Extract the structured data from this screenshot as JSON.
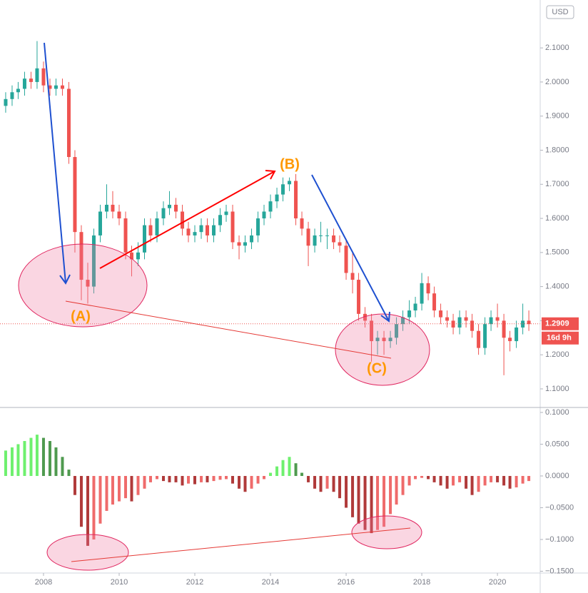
{
  "chart_data": [
    {
      "type": "candlestick",
      "x": [
        2007,
        2007.17,
        2007.33,
        2007.5,
        2007.67,
        2007.83,
        2008,
        2008.17,
        2008.33,
        2008.5,
        2008.67,
        2008.83,
        2009,
        2009.17,
        2009.33,
        2009.5,
        2009.67,
        2009.83,
        2010,
        2010.17,
        2010.33,
        2010.5,
        2010.67,
        2010.83,
        2011,
        2011.17,
        2011.33,
        2011.5,
        2011.67,
        2011.83,
        2012,
        2012.17,
        2012.33,
        2012.5,
        2012.67,
        2012.83,
        2013,
        2013.17,
        2013.33,
        2013.5,
        2013.67,
        2013.83,
        2014,
        2014.17,
        2014.33,
        2014.5,
        2014.67,
        2014.83,
        2015,
        2015.17,
        2015.33,
        2015.5,
        2015.67,
        2015.83,
        2016,
        2016.17,
        2016.33,
        2016.5,
        2016.67,
        2016.83,
        2017,
        2017.17,
        2017.33,
        2017.5,
        2017.67,
        2017.83,
        2018,
        2018.17,
        2018.33,
        2018.5,
        2018.67,
        2018.83,
        2019,
        2019.17,
        2019.33,
        2019.5,
        2019.67,
        2019.83,
        2020,
        2020.17,
        2020.33,
        2020.5,
        2020.67,
        2020.83
      ],
      "open": [
        1.93,
        1.95,
        1.97,
        1.98,
        2.01,
        2.0,
        2.04,
        1.99,
        1.98,
        1.99,
        1.98,
        1.78,
        1.56,
        1.42,
        1.4,
        1.55,
        1.62,
        1.64,
        1.62,
        1.6,
        1.5,
        1.48,
        1.5,
        1.58,
        1.55,
        1.6,
        1.63,
        1.64,
        1.62,
        1.57,
        1.55,
        1.56,
        1.58,
        1.55,
        1.58,
        1.61,
        1.62,
        1.53,
        1.52,
        1.53,
        1.55,
        1.6,
        1.62,
        1.65,
        1.67,
        1.7,
        1.71,
        1.6,
        1.57,
        1.52,
        1.55,
        1.55,
        1.55,
        1.53,
        1.52,
        1.44,
        1.42,
        1.32,
        1.3,
        1.24,
        1.25,
        1.24,
        1.25,
        1.29,
        1.31,
        1.33,
        1.35,
        1.41,
        1.38,
        1.33,
        1.31,
        1.3,
        1.28,
        1.31,
        1.3,
        1.27,
        1.22,
        1.29,
        1.31,
        1.3,
        1.25,
        1.24,
        1.28,
        1.3
      ],
      "high": [
        1.97,
        1.99,
        2.0,
        2.03,
        2.03,
        2.12,
        2.06,
        2.01,
        2.01,
        2.01,
        2.0,
        1.8,
        1.58,
        1.47,
        1.57,
        1.64,
        1.7,
        1.68,
        1.64,
        1.62,
        1.52,
        1.53,
        1.6,
        1.6,
        1.62,
        1.65,
        1.68,
        1.66,
        1.64,
        1.59,
        1.58,
        1.6,
        1.6,
        1.6,
        1.63,
        1.64,
        1.64,
        1.55,
        1.55,
        1.57,
        1.62,
        1.64,
        1.67,
        1.69,
        1.72,
        1.72,
        1.73,
        1.62,
        1.59,
        1.57,
        1.59,
        1.57,
        1.57,
        1.55,
        1.54,
        1.5,
        1.44,
        1.34,
        1.32,
        1.27,
        1.27,
        1.27,
        1.31,
        1.33,
        1.36,
        1.37,
        1.44,
        1.43,
        1.4,
        1.35,
        1.33,
        1.32,
        1.33,
        1.33,
        1.32,
        1.29,
        1.31,
        1.33,
        1.35,
        1.32,
        1.27,
        1.3,
        1.35,
        1.33
      ],
      "low": [
        1.91,
        1.93,
        1.95,
        1.96,
        1.98,
        1.98,
        1.97,
        1.96,
        1.96,
        1.96,
        1.76,
        1.5,
        1.36,
        1.35,
        1.38,
        1.53,
        1.6,
        1.6,
        1.58,
        1.48,
        1.43,
        1.46,
        1.48,
        1.53,
        1.53,
        1.58,
        1.61,
        1.6,
        1.55,
        1.53,
        1.53,
        1.54,
        1.53,
        1.53,
        1.56,
        1.59,
        1.51,
        1.48,
        1.5,
        1.51,
        1.53,
        1.58,
        1.6,
        1.63,
        1.65,
        1.68,
        1.58,
        1.55,
        1.46,
        1.5,
        1.53,
        1.51,
        1.51,
        1.5,
        1.42,
        1.38,
        1.3,
        1.28,
        1.18,
        1.2,
        1.2,
        1.22,
        1.23,
        1.27,
        1.29,
        1.31,
        1.33,
        1.36,
        1.31,
        1.29,
        1.28,
        1.26,
        1.26,
        1.28,
        1.25,
        1.2,
        1.2,
        1.27,
        1.28,
        1.14,
        1.21,
        1.22,
        1.26,
        1.27
      ],
      "close": [
        1.95,
        1.97,
        1.98,
        2.01,
        2.0,
        2.04,
        1.99,
        1.98,
        1.99,
        1.98,
        1.78,
        1.56,
        1.42,
        1.4,
        1.55,
        1.62,
        1.64,
        1.62,
        1.6,
        1.5,
        1.48,
        1.5,
        1.58,
        1.55,
        1.6,
        1.63,
        1.64,
        1.62,
        1.57,
        1.55,
        1.56,
        1.58,
        1.55,
        1.58,
        1.61,
        1.62,
        1.53,
        1.52,
        1.53,
        1.55,
        1.6,
        1.62,
        1.65,
        1.67,
        1.7,
        1.71,
        1.6,
        1.57,
        1.52,
        1.55,
        1.55,
        1.55,
        1.53,
        1.52,
        1.44,
        1.42,
        1.32,
        1.3,
        1.24,
        1.25,
        1.24,
        1.25,
        1.29,
        1.31,
        1.33,
        1.35,
        1.41,
        1.38,
        1.33,
        1.31,
        1.3,
        1.28,
        1.31,
        1.3,
        1.27,
        1.22,
        1.29,
        1.31,
        1.3,
        1.25,
        1.24,
        1.28,
        1.3,
        1.29
      ],
      "colors": {
        "up": "#26a69a",
        "down": "#ef5350"
      },
      "xlim": [
        2006.85,
        2021.13
      ],
      "xticks": [
        2008,
        2010,
        2012,
        2014,
        2016,
        2018,
        2020
      ],
      "ylim": [
        1.0455,
        2.2405
      ],
      "yticks": [
        {
          "value": 1.1,
          "label": "1.1000"
        },
        {
          "value": 1.2,
          "label": "1.2000"
        },
        {
          "value": 1.3,
          "label": "1.3000"
        },
        {
          "value": 1.4,
          "label": "1.4000"
        },
        {
          "value": 1.5,
          "label": "1.5000"
        },
        {
          "value": 1.6,
          "label": "1.6000"
        },
        {
          "value": 1.7,
          "label": "1.7000"
        },
        {
          "value": 1.8,
          "label": "1.8000"
        },
        {
          "value": 1.9,
          "label": "1.9000"
        },
        {
          "value": 2.0,
          "label": "2.0000"
        },
        {
          "value": 2.1,
          "label": "2.1000"
        }
      ],
      "currency": "USD",
      "last_price": {
        "value": 1.2909,
        "label": "1.2909"
      },
      "countdown": "16d 9h",
      "annotations": [
        "(A)",
        "(B)",
        "(C)"
      ]
    },
    {
      "type": "bar",
      "values": [
        0.04,
        0.045,
        0.05,
        0.055,
        0.06,
        0.065,
        0.06,
        0.055,
        0.045,
        0.03,
        0.01,
        -0.03,
        -0.08,
        -0.11,
        -0.1,
        -0.075,
        -0.055,
        -0.045,
        -0.04,
        -0.035,
        -0.04,
        -0.03,
        -0.02,
        -0.01,
        -0.005,
        -0.008,
        -0.01,
        -0.01,
        -0.015,
        -0.012,
        -0.013,
        -0.01,
        -0.01,
        -0.008,
        -0.006,
        -0.005,
        -0.012,
        -0.02,
        -0.025,
        -0.02,
        -0.012,
        -0.005,
        0.005,
        0.015,
        0.025,
        0.03,
        0.02,
        0.005,
        -0.01,
        -0.02,
        -0.025,
        -0.02,
        -0.025,
        -0.035,
        -0.05,
        -0.065,
        -0.075,
        -0.085,
        -0.09,
        -0.085,
        -0.08,
        -0.06,
        -0.045,
        -0.03,
        -0.015,
        -0.005,
        -0.003,
        -0.005,
        -0.01,
        -0.015,
        -0.02,
        -0.015,
        -0.01,
        -0.02,
        -0.03,
        -0.025,
        -0.015,
        -0.01,
        -0.01,
        -0.015,
        -0.02,
        -0.018,
        -0.012,
        -0.008
      ],
      "colors": {
        "positive_growing": "#6ef06e",
        "positive_falling": "#4f9a4f",
        "negative_growing": "#b03a3a",
        "negative_falling": "#ef6b6b"
      },
      "ylim": [
        -0.1528,
        0.1067
      ],
      "yticks": [
        {
          "value": 0.1,
          "label": "0.1000"
        },
        {
          "value": 0.05,
          "label": "0.0500"
        },
        {
          "value": 0,
          "label": "0.0000"
        },
        {
          "value": -0.05,
          "label": "−0.0500"
        },
        {
          "value": -0.1,
          "label": "−0.1000"
        },
        {
          "value": -0.15,
          "label": "−0.1500"
        }
      ]
    }
  ]
}
